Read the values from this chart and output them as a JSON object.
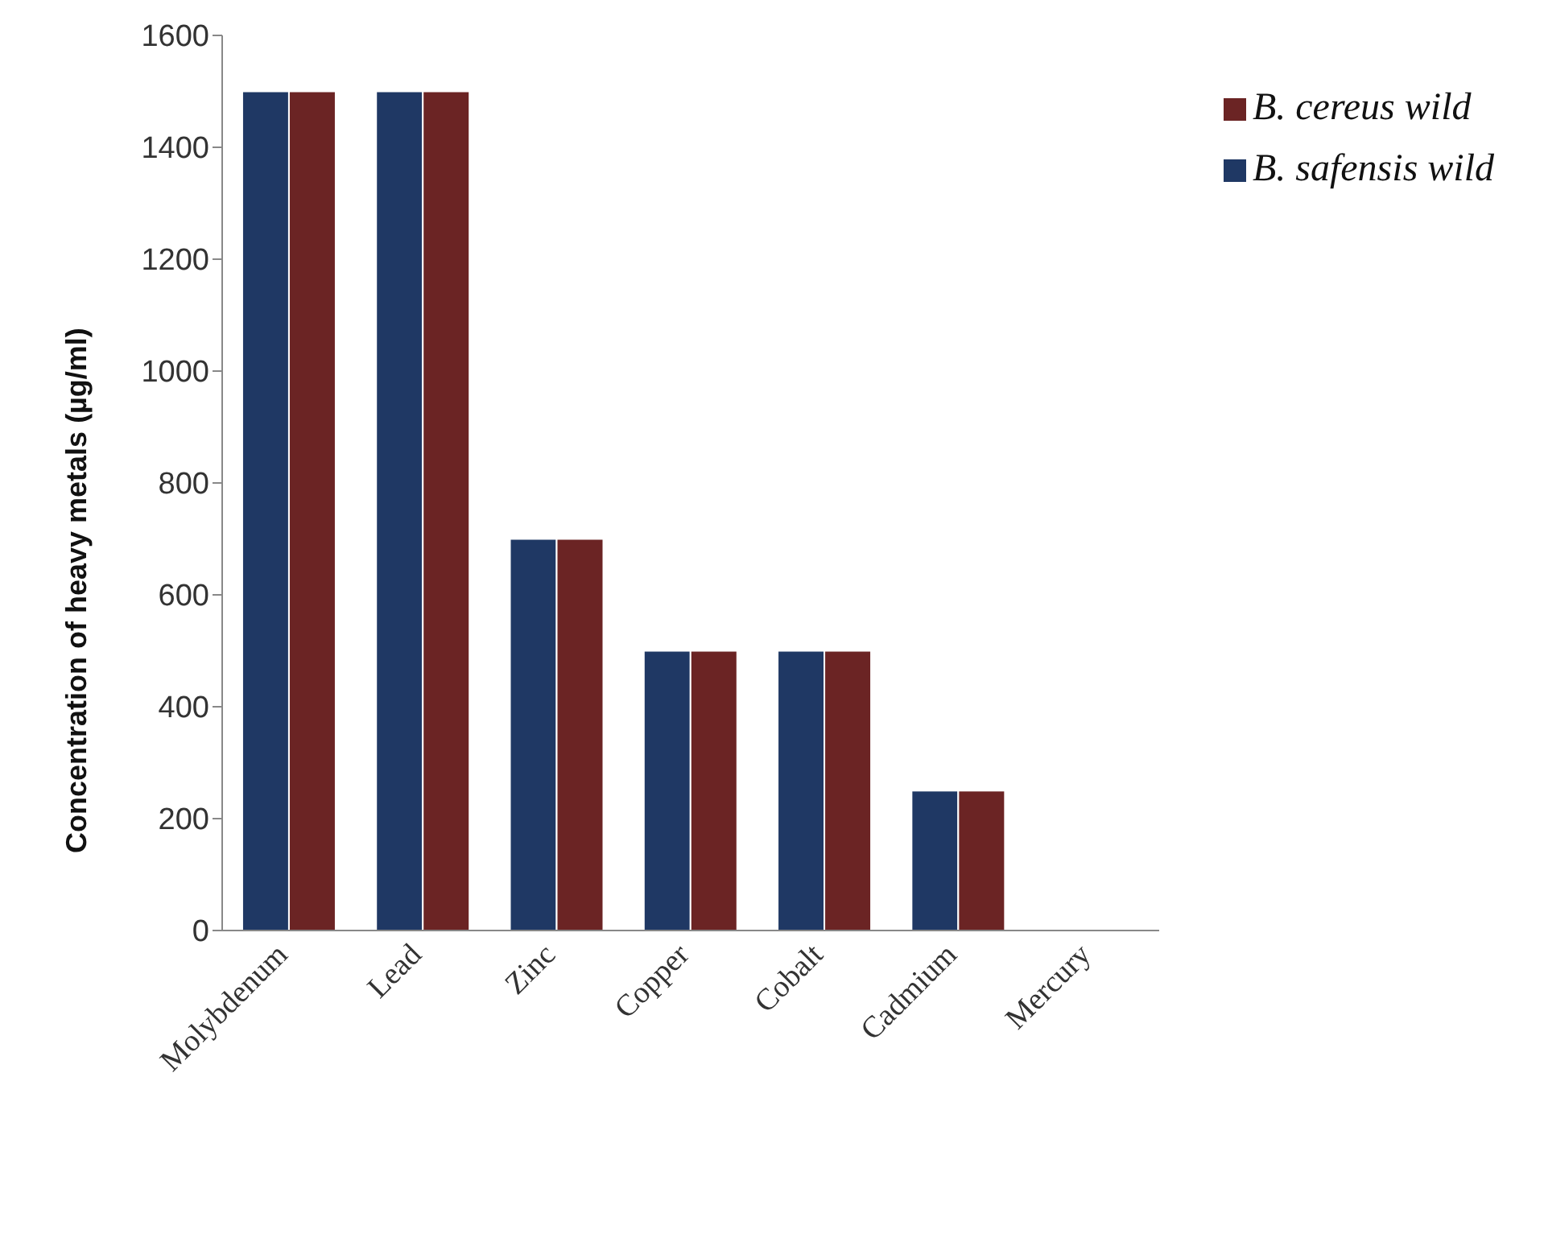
{
  "chart_data": {
    "type": "bar",
    "ylabel": "Concentration of heavy metals (µg/ml)",
    "categories": [
      "Molybdenum",
      "Lead",
      "Zinc",
      "Copper",
      "Cobalt",
      "Cadmium",
      "Mercury"
    ],
    "series": [
      {
        "name": "B. safensis wild",
        "color": "#1f3864",
        "values": [
          1500,
          1500,
          700,
          500,
          500,
          250,
          0
        ]
      },
      {
        "name": "B. cereus wild",
        "color": "#6b2424",
        "values": [
          1500,
          1500,
          700,
          500,
          500,
          250,
          0
        ]
      }
    ],
    "ylim": [
      0,
      1600
    ],
    "yticks": [
      0,
      200,
      400,
      600,
      800,
      1000,
      1200,
      1400,
      1600
    ],
    "grid": false,
    "legend": "top right"
  }
}
